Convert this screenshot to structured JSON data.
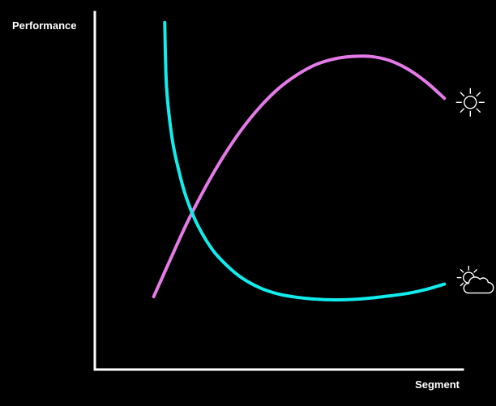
{
  "chart_data": {
    "type": "line",
    "title": "",
    "xlabel": "Segment",
    "ylabel": "Performance",
    "xlim": [
      0,
      100
    ],
    "ylim": [
      0,
      100
    ],
    "grid": false,
    "legend": "none",
    "series": [
      {
        "name": "Sunny",
        "color": "#e47ae8",
        "icon": "sun-icon",
        "x": [
          16,
          20,
          25,
          30,
          35,
          40,
          45,
          50,
          55,
          60,
          65,
          70,
          75,
          80,
          85,
          90,
          95
        ],
        "y": [
          20.4,
          29.6,
          40.9,
          50.9,
          59.7,
          67.3,
          73.6,
          78.7,
          82.5,
          85.3,
          86.9,
          87.6,
          87.6,
          86.5,
          84.1,
          80.5,
          75.9
        ]
      },
      {
        "name": "Partly cloudy",
        "color": "#11eced",
        "icon": "partly-cloudy-icon",
        "x": [
          19,
          19.5,
          21,
          23,
          25,
          28,
          32,
          36,
          40,
          45,
          50,
          55,
          60,
          65,
          70,
          75,
          80,
          85,
          90,
          95
        ],
        "y": [
          97.1,
          79.0,
          64.7,
          54.9,
          47.7,
          40.3,
          33.5,
          29.0,
          25.6,
          22.8,
          21.1,
          20.2,
          19.7,
          19.5,
          19.6,
          20.0,
          20.6,
          21.3,
          22.4,
          23.9
        ]
      }
    ]
  }
}
